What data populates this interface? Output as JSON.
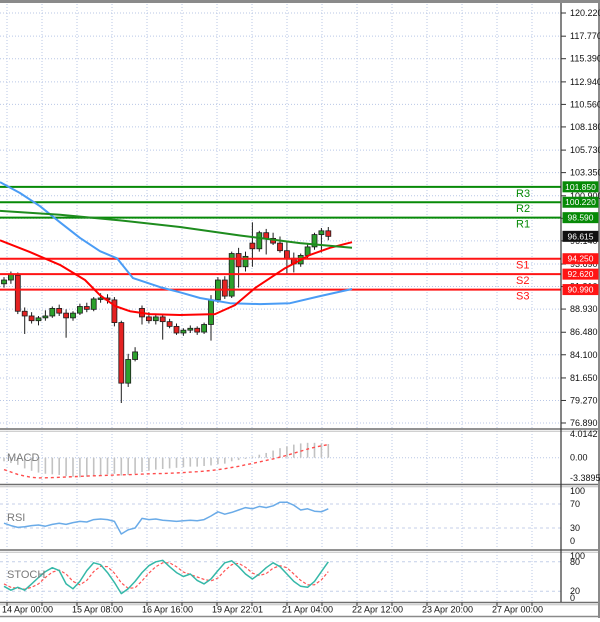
{
  "window": {
    "kind": "forex analysis chart"
  },
  "panel_labels": {
    "macd": "MACD",
    "rsi": "RSI",
    "stoch": "STOCH"
  },
  "colors": {
    "background": "#ffffff",
    "grid": "#b9c7e6",
    "bull_candle": "#2ca02c",
    "bear_candle": "#e42222",
    "candle_outline": "#1c1c1c",
    "ma_blue": "#4a9cf5",
    "ma_red": "#ff0000",
    "ma_green": "#1e8c1e",
    "resistance": "#078a07",
    "support": "#ff1414",
    "current_price_box": "#111111",
    "macd_histogram": "#c2c2c2",
    "macd_signal": "#ff4d4d",
    "rsi_line": "#6aabe8",
    "stoch_k": "#35b8a8",
    "stoch_d": "#ff5555",
    "separator": "#8a8a8a"
  },
  "chart_data": {
    "type": "candlestick",
    "y_axis": {
      "ylim": [
        76.89,
        120.22
      ],
      "ticks": [
        "120.220",
        "117.770",
        "115.390",
        "112.940",
        "110.560",
        "108.180",
        "105.730",
        "103.350",
        "100.900",
        "98.520",
        "96.140",
        "93.690",
        "91.310",
        "88.930",
        "86.480",
        "84.100",
        "81.650",
        "79.270",
        "76.890"
      ]
    },
    "x_axis": {
      "labels": [
        "14 Apr 00:00",
        "15 Apr 08:00",
        "16 Apr 16:00",
        "19 Apr 22:01",
        "21 Apr 04:00",
        "22 Apr 12:00",
        "23 Apr 20:00",
        "27 Apr 00:00"
      ]
    },
    "current_price": {
      "value": 96.615,
      "display": "96.615"
    },
    "pivot_levels": [
      {
        "label": "R3",
        "value": 101.85,
        "display": "101.850",
        "kind": "resistance"
      },
      {
        "label": "R2",
        "value": 100.22,
        "display": "100.220",
        "kind": "resistance"
      },
      {
        "label": "R1",
        "value": 98.59,
        "display": "98.590",
        "kind": "resistance"
      },
      {
        "label": "S1",
        "value": 94.25,
        "display": "94.250",
        "kind": "support"
      },
      {
        "label": "S2",
        "value": 92.62,
        "display": "92.620",
        "kind": "support"
      },
      {
        "label": "S3",
        "value": 90.99,
        "display": "90.990",
        "kind": "support"
      }
    ],
    "candles_ohlc": [
      [
        91.6,
        92.3,
        91.2,
        92.0
      ],
      [
        92.0,
        92.9,
        91.6,
        92.6
      ],
      [
        92.5,
        92.8,
        88.4,
        88.7
      ],
      [
        88.7,
        89.1,
        86.3,
        88.2
      ],
      [
        88.2,
        88.6,
        87.4,
        87.7
      ],
      [
        87.7,
        88.2,
        87.2,
        88.0
      ],
      [
        88.0,
        88.8,
        87.7,
        88.2
      ],
      [
        88.2,
        89.2,
        88.0,
        89.0
      ],
      [
        89.0,
        89.4,
        88.2,
        88.5
      ],
      [
        88.5,
        88.9,
        85.9,
        88.0
      ],
      [
        88.0,
        88.7,
        87.7,
        88.5
      ],
      [
        88.5,
        89.5,
        88.3,
        89.2
      ],
      [
        89.2,
        89.6,
        88.6,
        88.9
      ],
      [
        88.9,
        90.2,
        88.7,
        90.0
      ],
      [
        90.0,
        90.6,
        89.6,
        90.1
      ],
      [
        90.1,
        90.5,
        89.5,
        89.9
      ],
      [
        89.9,
        90.2,
        87.1,
        87.5
      ],
      [
        87.5,
        87.7,
        79.0,
        81.1
      ],
      [
        81.1,
        84.2,
        80.7,
        83.6
      ],
      [
        83.6,
        84.9,
        83.4,
        84.4
      ],
      [
        89.0,
        89.3,
        87.3,
        88.1
      ],
      [
        88.1,
        88.6,
        87.4,
        87.7
      ],
      [
        87.7,
        88.4,
        87.3,
        88.1
      ],
      [
        88.1,
        88.3,
        85.7,
        87.6
      ],
      [
        87.6,
        87.9,
        86.9,
        87.1
      ],
      [
        87.1,
        87.4,
        86.2,
        86.4
      ],
      [
        86.4,
        86.9,
        86.1,
        86.7
      ],
      [
        86.7,
        87.2,
        86.4,
        86.9
      ],
      [
        86.9,
        87.1,
        86.2,
        86.5
      ],
      [
        86.5,
        87.5,
        86.3,
        87.3
      ],
      [
        87.3,
        90.4,
        85.6,
        89.9
      ],
      [
        89.9,
        92.3,
        89.6,
        92.0
      ],
      [
        92.0,
        92.4,
        90.0,
        90.3
      ],
      [
        90.3,
        95.0,
        90.1,
        94.8
      ],
      [
        94.8,
        95.4,
        91.2,
        93.4
      ],
      [
        93.4,
        95.0,
        92.9,
        94.5
      ],
      [
        95.9,
        98.1,
        93.4,
        95.3
      ],
      [
        95.3,
        97.2,
        95.0,
        97.0
      ],
      [
        97.0,
        97.4,
        94.7,
        96.4
      ],
      [
        96.4,
        97.0,
        95.7,
        95.9
      ],
      [
        95.9,
        96.6,
        94.9,
        95.1
      ],
      [
        95.1,
        96.1,
        92.7,
        94.3
      ],
      [
        94.3,
        94.9,
        92.8,
        93.7
      ],
      [
        93.7,
        94.8,
        93.4,
        94.6
      ],
      [
        94.6,
        95.8,
        94.3,
        95.5
      ],
      [
        95.5,
        97.0,
        95.2,
        96.8
      ],
      [
        96.8,
        97.5,
        94.9,
        97.2
      ],
      [
        97.2,
        97.6,
        96.2,
        96.615
      ]
    ],
    "moving_averages": [
      {
        "name": "ma-fast-blue",
        "points": [
          [
            0,
            102.35
          ],
          [
            20,
            101.2
          ],
          [
            40,
            99.8
          ],
          [
            60,
            98.1
          ],
          [
            80,
            96.45
          ],
          [
            100,
            95.05
          ],
          [
            117,
            94.3
          ],
          [
            133,
            92.2
          ],
          [
            160,
            91.25
          ],
          [
            180,
            90.7
          ],
          [
            200,
            90.1
          ],
          [
            230,
            89.55
          ],
          [
            260,
            89.45
          ],
          [
            290,
            89.55
          ],
          [
            320,
            90.3
          ],
          [
            352,
            91.05
          ]
        ]
      },
      {
        "name": "ma-mid-red",
        "points": [
          [
            0,
            96.2
          ],
          [
            30,
            94.95
          ],
          [
            60,
            93.6
          ],
          [
            85,
            92.0
          ],
          [
            100,
            90.4
          ],
          [
            115,
            89.25
          ],
          [
            130,
            88.7
          ],
          [
            150,
            88.4
          ],
          [
            180,
            88.3
          ],
          [
            215,
            88.4
          ],
          [
            235,
            89.35
          ],
          [
            255,
            91.15
          ],
          [
            285,
            93.25
          ],
          [
            310,
            94.65
          ],
          [
            330,
            95.4
          ],
          [
            352,
            96.0
          ]
        ]
      },
      {
        "name": "ma-slow-green",
        "points": [
          [
            0,
            99.3
          ],
          [
            60,
            98.9
          ],
          [
            120,
            98.3
          ],
          [
            180,
            97.6
          ],
          [
            240,
            96.7
          ],
          [
            300,
            95.9
          ],
          [
            352,
            95.4
          ]
        ]
      }
    ],
    "indicators": {
      "macd": {
        "ticks": [
          "4.0142",
          "0.00",
          "-3.3895"
        ],
        "ylim": [
          -3.3895,
          4.0142
        ],
        "histogram": [
          -0.6,
          -0.9,
          -1.2,
          -1.8,
          -2.2,
          -2.5,
          -2.7,
          -2.8,
          -2.9,
          -3.1,
          -3.2,
          -3.3,
          -3.2,
          -3.0,
          -2.9,
          -2.8,
          -2.7,
          -3.0,
          -2.9,
          -2.7,
          -2.4,
          -2.2,
          -2.0,
          -1.9,
          -1.8,
          -1.7,
          -1.6,
          -1.5,
          -1.5,
          -1.4,
          -1.3,
          -1.1,
          -1.0,
          -0.6,
          -0.4,
          -0.2,
          0.2,
          0.5,
          0.8,
          1.2,
          1.6,
          1.9,
          2.2,
          2.4,
          2.5,
          2.5,
          2.4,
          2.3
        ],
        "signal": [
          -2.0,
          -2.4,
          -2.8,
          -3.1,
          -3.3,
          -3.39,
          -3.38,
          -3.35,
          -3.3,
          -3.25,
          -3.2,
          -3.15,
          -3.1,
          -3.05,
          -3.0,
          -2.95,
          -2.9,
          -2.88,
          -2.85,
          -2.8,
          -2.75,
          -2.7,
          -2.68,
          -2.65,
          -2.6,
          -2.55,
          -2.5,
          -2.42,
          -2.35,
          -2.25,
          -2.15,
          -2.0,
          -1.85,
          -1.65,
          -1.45,
          -1.2,
          -0.95,
          -0.7,
          -0.45,
          -0.2,
          0.1,
          0.4,
          0.75,
          1.1,
          1.45,
          1.75,
          2.0,
          2.2
        ]
      },
      "rsi": {
        "ticks": [
          "100",
          "70",
          "30",
          "0"
        ],
        "ylim": [
          0,
          100
        ],
        "levels": [
          70,
          30
        ],
        "values": [
          38,
          34,
          31,
          32,
          34,
          35,
          33,
          36,
          38,
          36,
          39,
          41,
          40,
          44,
          45,
          44,
          41,
          20,
          27,
          30,
          46,
          44,
          45,
          43,
          42,
          41,
          42,
          43,
          42,
          44,
          50,
          57,
          53,
          56,
          60,
          64,
          62,
          66,
          64,
          67,
          73,
          73,
          68,
          60,
          62,
          58,
          57,
          62
        ]
      },
      "stoch": {
        "ticks": [
          "100",
          "80",
          "20",
          "0"
        ],
        "ylim": [
          0,
          100
        ],
        "levels": [
          80,
          20
        ],
        "k": [
          30,
          22,
          28,
          22,
          35,
          48,
          60,
          68,
          62,
          35,
          25,
          40,
          62,
          78,
          74,
          58,
          38,
          15,
          25,
          40,
          58,
          72,
          80,
          83,
          70,
          58,
          50,
          55,
          42,
          35,
          45,
          62,
          78,
          82,
          70,
          55,
          45,
          55,
          68,
          78,
          70,
          55,
          40,
          30,
          28,
          40,
          60,
          80
        ],
        "d": [
          35,
          28,
          26,
          24,
          28,
          35,
          48,
          59,
          63,
          55,
          40,
          33,
          42,
          60,
          71,
          70,
          57,
          37,
          26,
          27,
          41,
          57,
          70,
          78,
          78,
          70,
          59,
          54,
          49,
          44,
          41,
          47,
          62,
          74,
          77,
          69,
          57,
          52,
          56,
          67,
          72,
          68,
          55,
          42,
          33,
          33,
          43,
          60
        ]
      }
    }
  }
}
